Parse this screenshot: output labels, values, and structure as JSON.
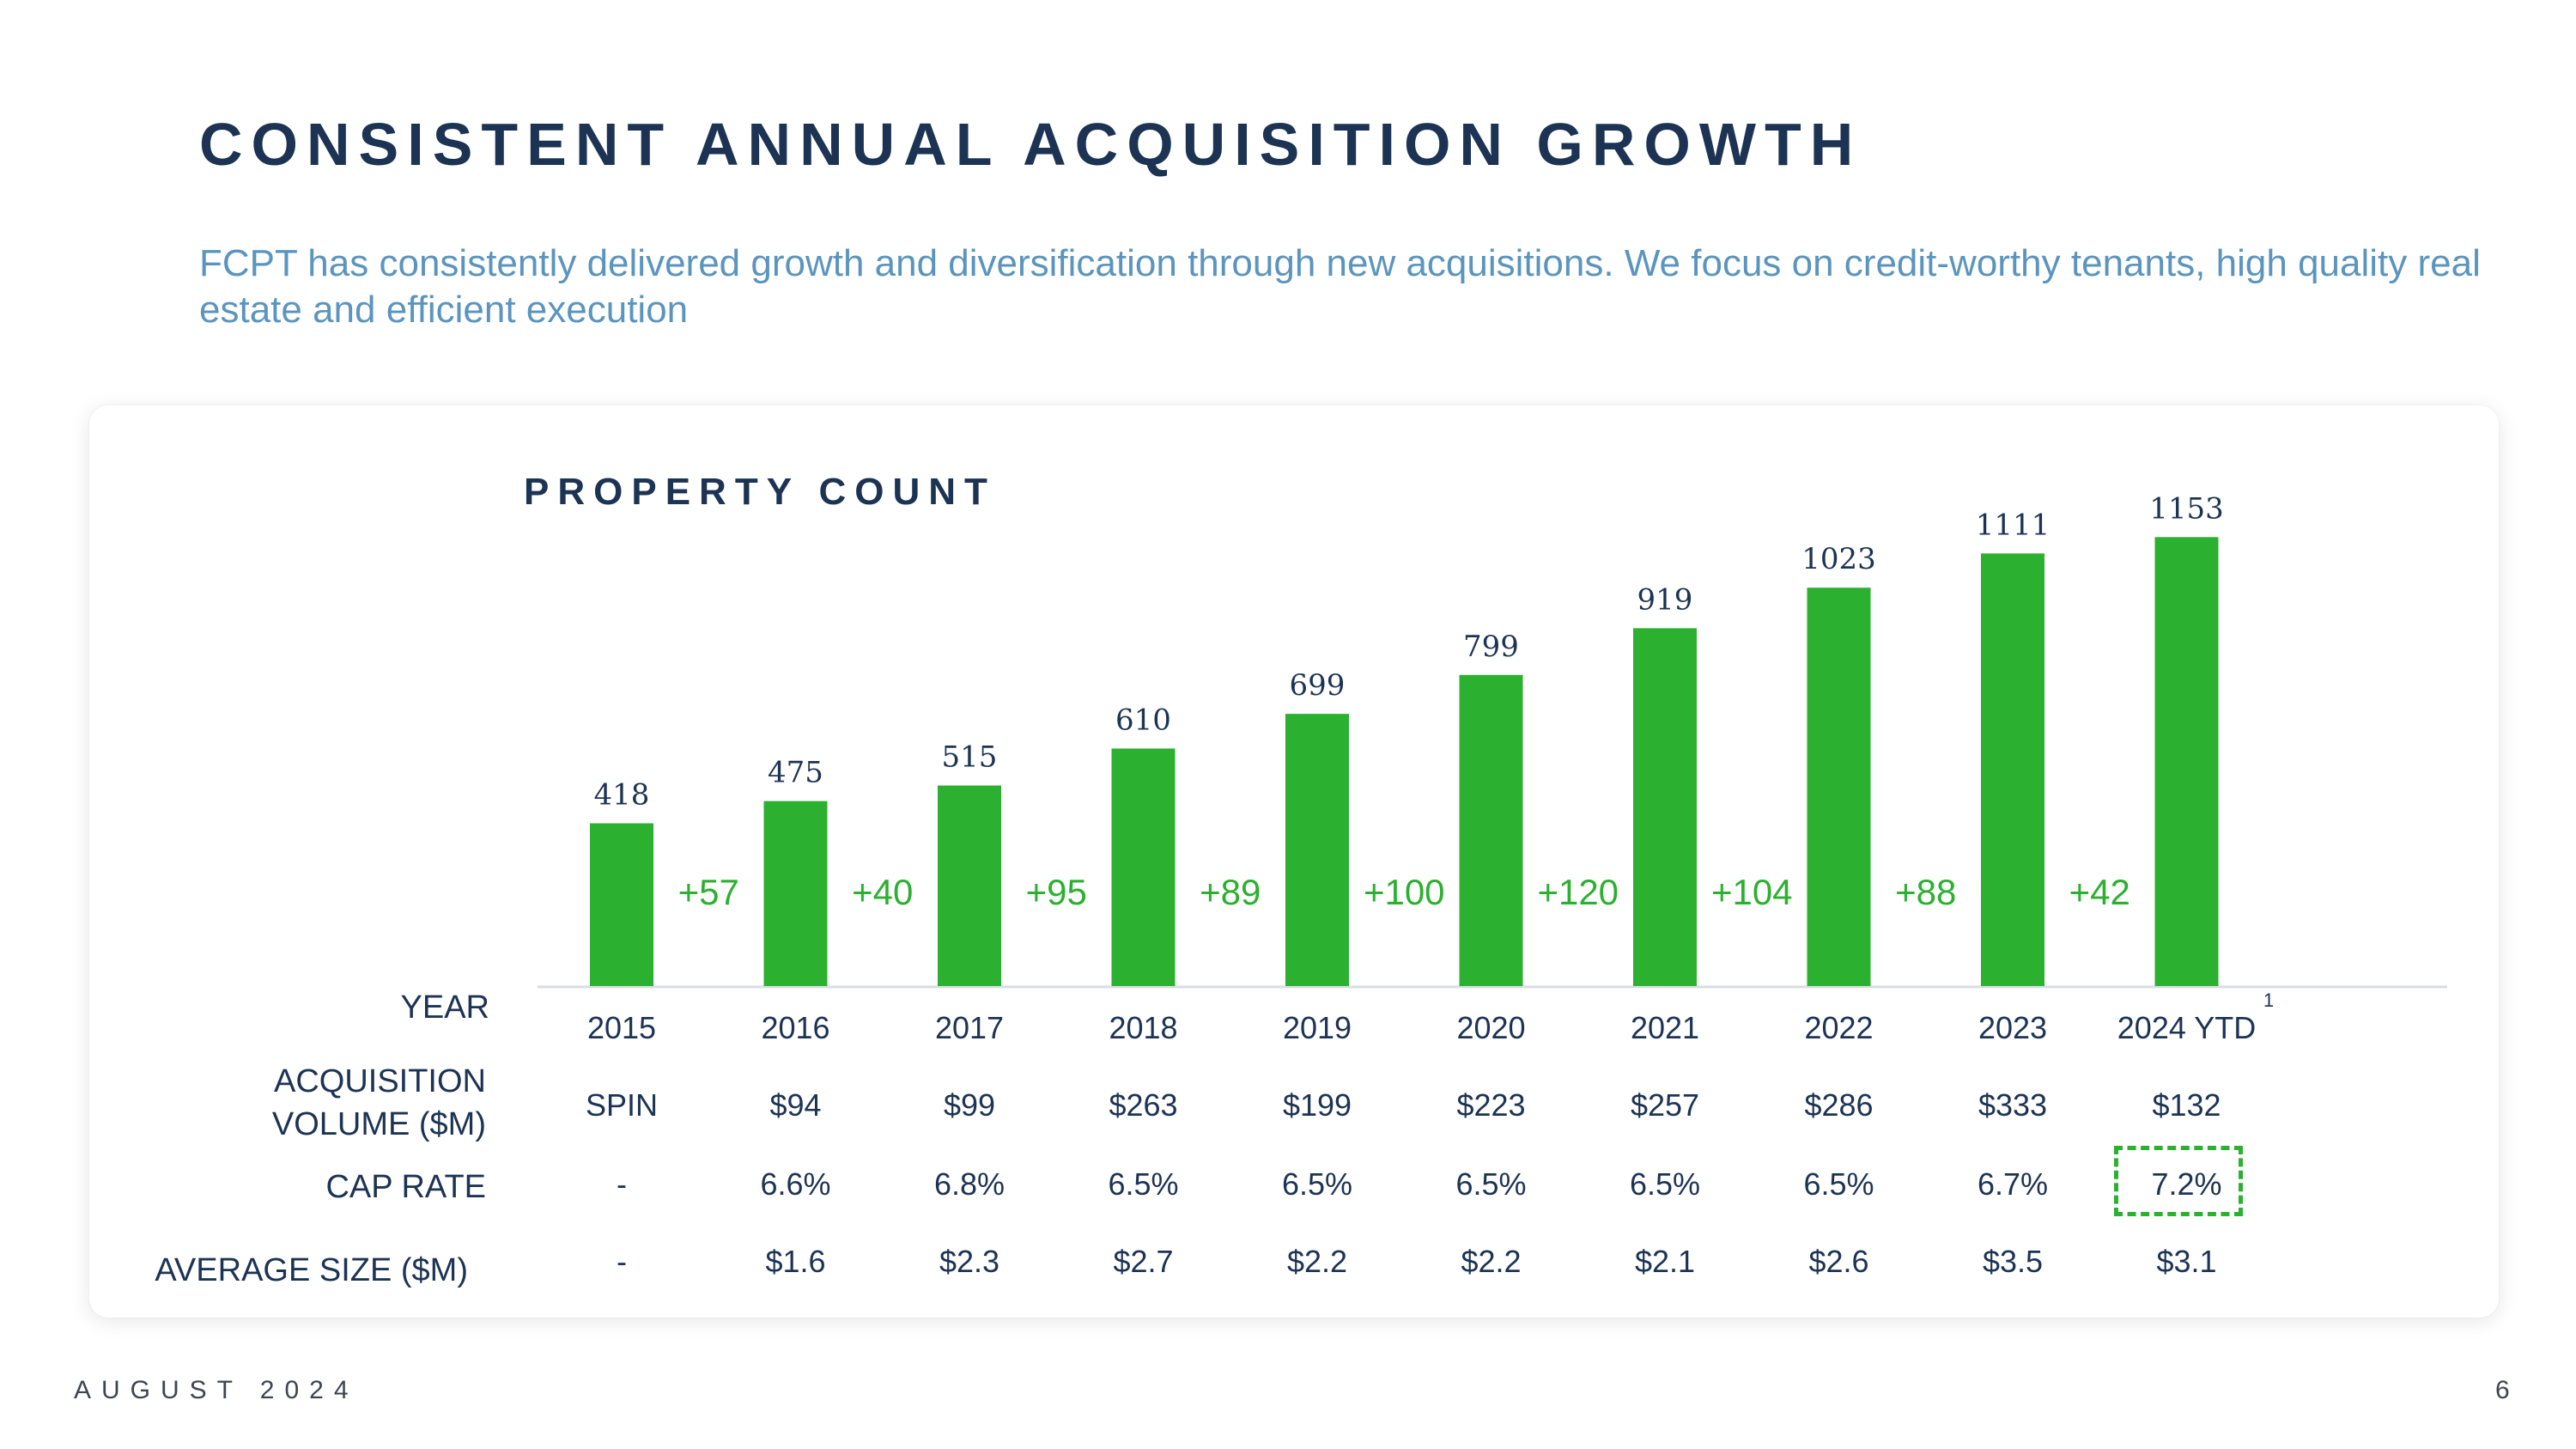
{
  "page": {
    "title": "CONSISTENT ANNUAL ACQUISITION GROWTH",
    "subtitle": "FCPT has consistently delivered growth and diversification through new acquisitions. We focus on credit-worthy tenants, high quality real estate and efficient execution",
    "footer_date": "AUGUST 2024",
    "page_number": "6"
  },
  "chart_data": {
    "type": "bar",
    "title": "PROPERTY COUNT",
    "categories": [
      "2015",
      "2016",
      "2017",
      "2018",
      "2019",
      "2020",
      "2021",
      "2022",
      "2023",
      "2024 YTD"
    ],
    "values": [
      418,
      475,
      515,
      610,
      699,
      799,
      919,
      1023,
      1111,
      1153
    ],
    "increments": [
      "+57",
      "+40",
      "+95",
      "+89",
      "+100",
      "+120",
      "+104",
      "+88",
      "+42"
    ],
    "ylim": [
      0,
      1200
    ],
    "bar_color": "#2bb02f",
    "increment_color": "#2bb02f",
    "value_label_color": "#1c3354",
    "footnote": "1"
  },
  "table": {
    "labels": {
      "year": "YEAR",
      "acq_line1": "ACQUISITION",
      "acq_line2": "VOLUME ($M)",
      "cap_rate": "CAP RATE",
      "avg_size": "AVERAGE SIZE ($M)"
    },
    "acquisition_volume": [
      "SPIN",
      "$94",
      "$99",
      "$263",
      "$199",
      "$223",
      "$257",
      "$286",
      "$333",
      "$132"
    ],
    "cap_rate": [
      "-",
      "6.6%",
      "6.8%",
      "6.5%",
      "6.5%",
      "6.5%",
      "6.5%",
      "6.5%",
      "6.7%",
      "7.2%"
    ],
    "average_size": [
      "-",
      "$1.6",
      "$2.3",
      "$2.7",
      "$2.2",
      "$2.2",
      "$2.1",
      "$2.6",
      "$3.5",
      "$3.1"
    ]
  }
}
